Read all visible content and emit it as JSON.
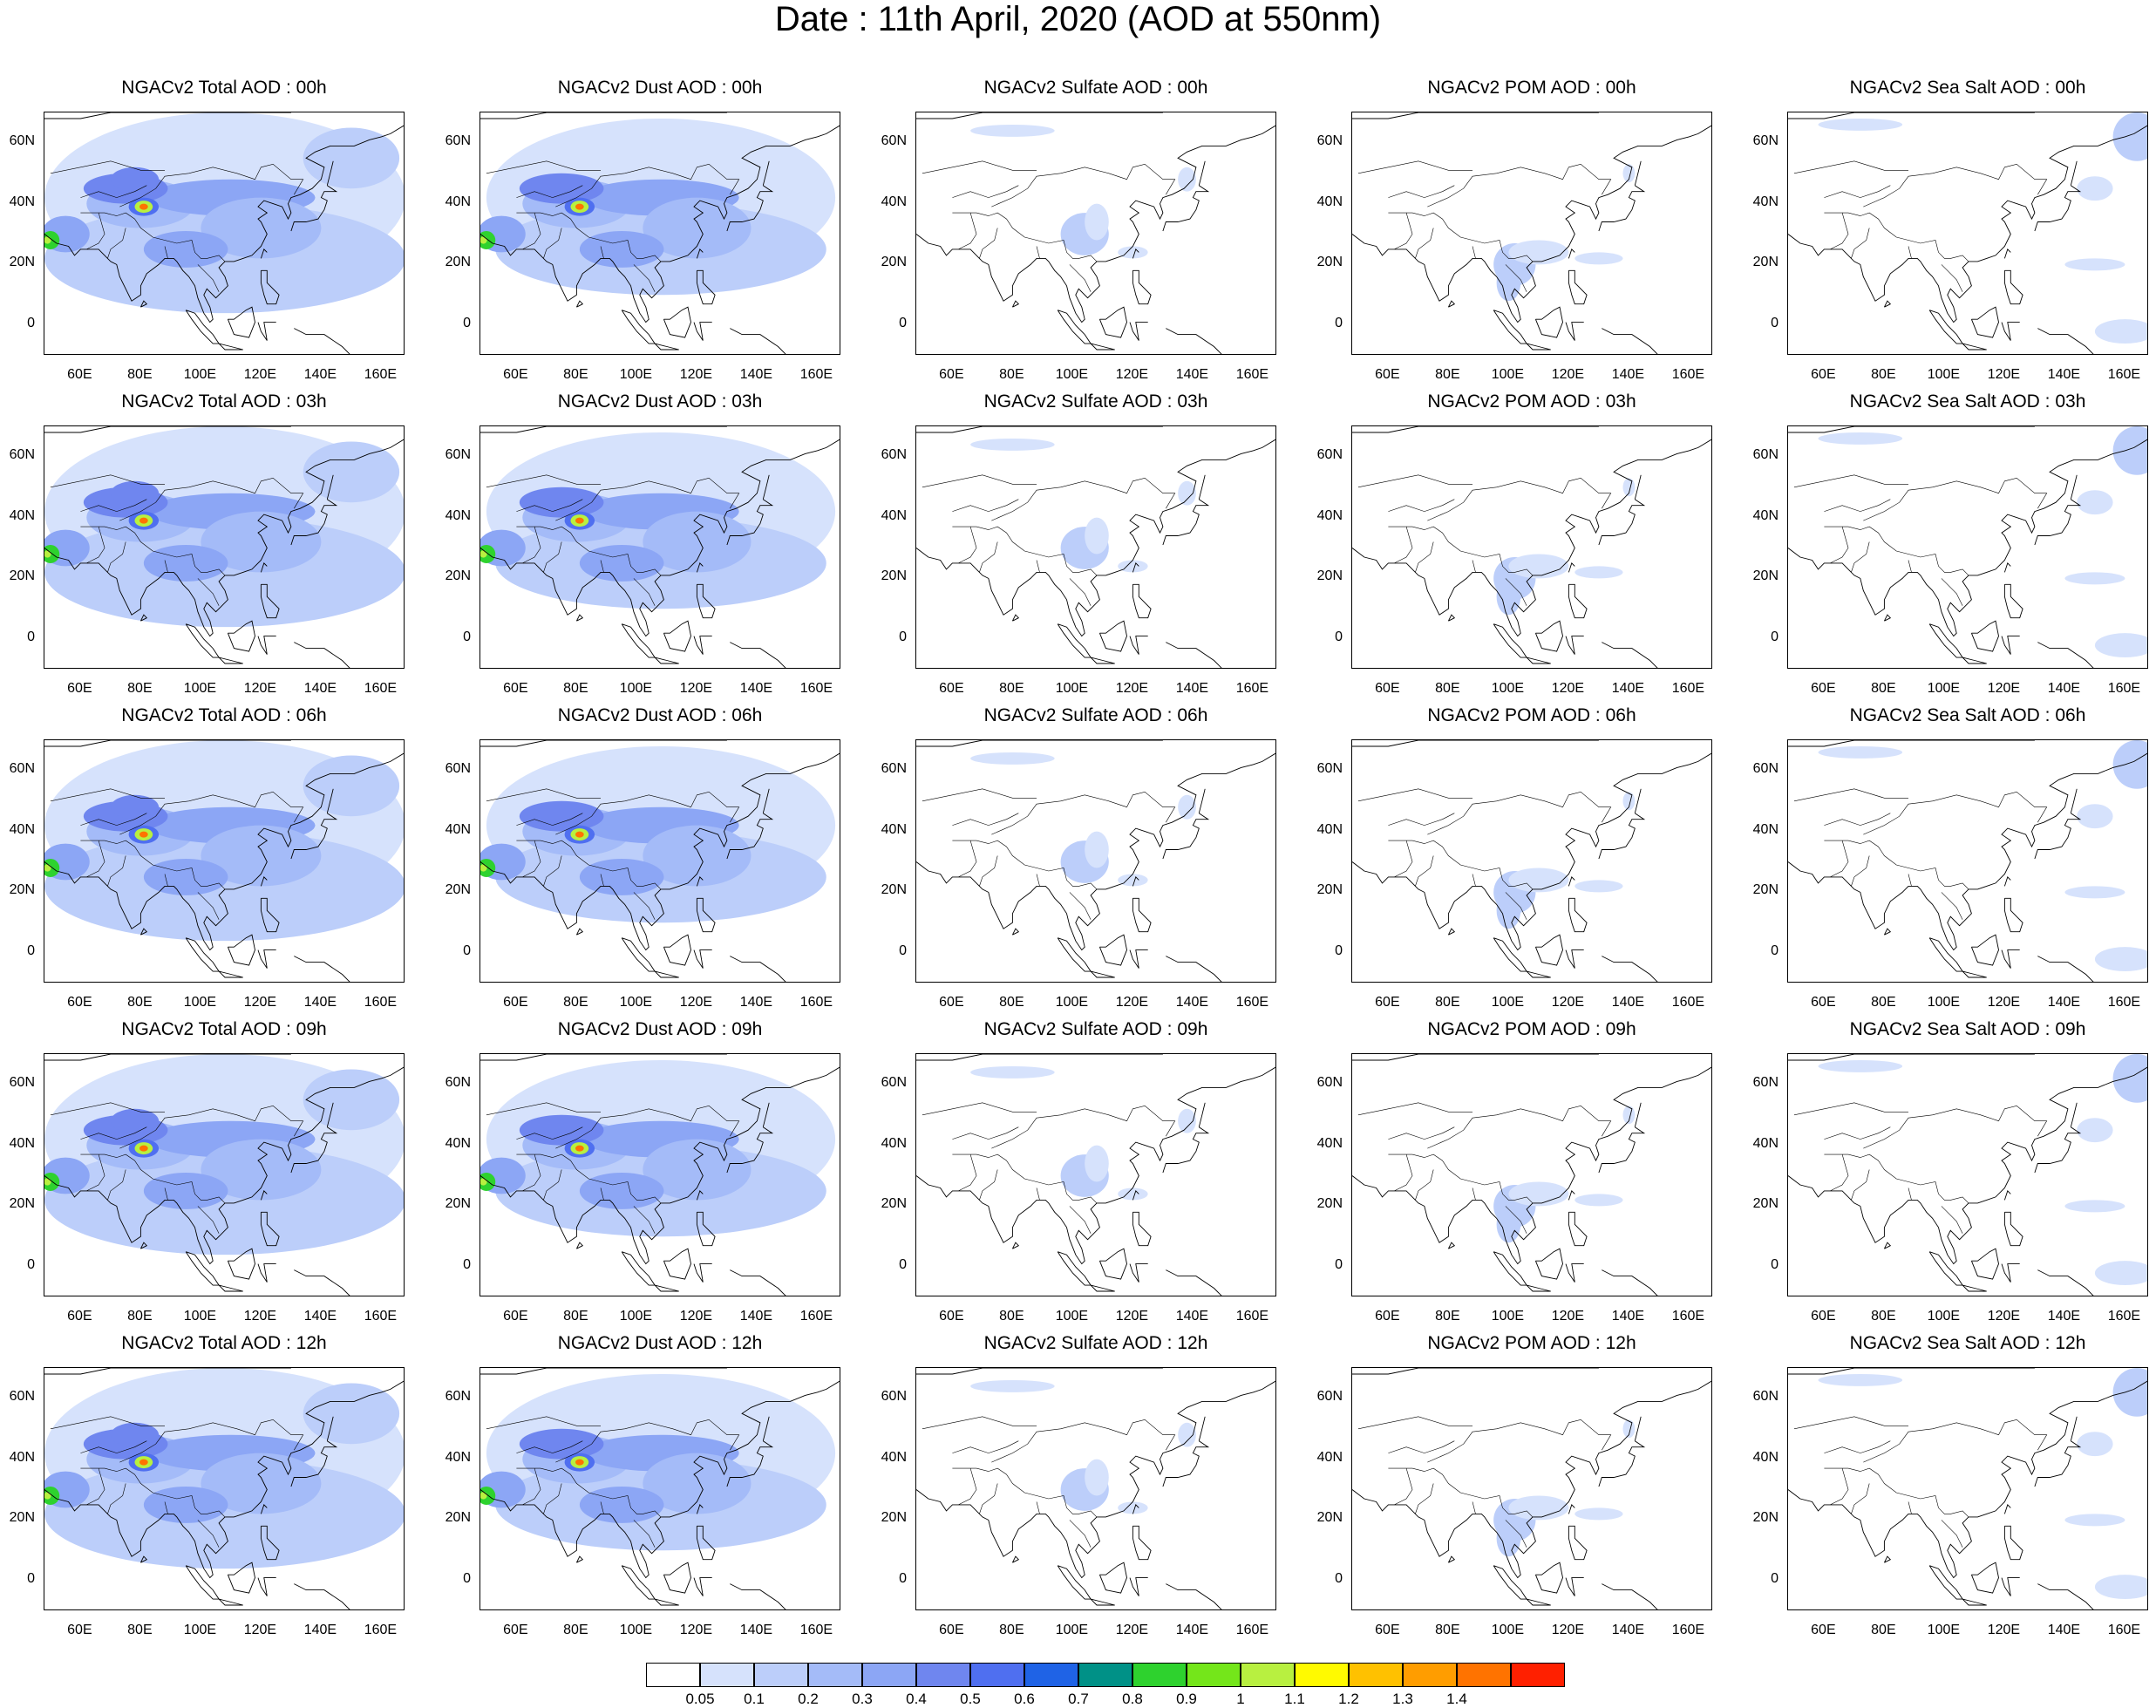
{
  "title": "Date : 11th April, 2020 (AOD at 550nm)",
  "x_tick_labels": [
    "60E",
    "80E",
    "100E",
    "120E",
    "140E",
    "160E"
  ],
  "y_tick_labels": [
    "60N",
    "40N",
    "20N",
    "0"
  ],
  "map_extent": {
    "lon": [
      48,
      168
    ],
    "lat": [
      -10,
      70
    ]
  },
  "panels": [
    {
      "title": "NGACv2 Total AOD : 00h",
      "species": "total",
      "hour": "00h"
    },
    {
      "title": "NGACv2 Dust AOD : 00h",
      "species": "dust",
      "hour": "00h"
    },
    {
      "title": "NGACv2 Sulfate AOD : 00h",
      "species": "sulfate",
      "hour": "00h"
    },
    {
      "title": "NGACv2 POM AOD : 00h",
      "species": "pom",
      "hour": "00h"
    },
    {
      "title": "NGACv2 Sea Salt AOD : 00h",
      "species": "seasalt",
      "hour": "00h"
    },
    {
      "title": "NGACv2 Total AOD : 03h",
      "species": "total",
      "hour": "03h"
    },
    {
      "title": "NGACv2 Dust AOD : 03h",
      "species": "dust",
      "hour": "03h"
    },
    {
      "title": "NGACv2 Sulfate AOD : 03h",
      "species": "sulfate",
      "hour": "03h"
    },
    {
      "title": "NGACv2 POM AOD : 03h",
      "species": "pom",
      "hour": "03h"
    },
    {
      "title": "NGACv2 Sea Salt AOD : 03h",
      "species": "seasalt",
      "hour": "03h"
    },
    {
      "title": "NGACv2 Total AOD : 06h",
      "species": "total",
      "hour": "06h"
    },
    {
      "title": "NGACv2 Dust AOD : 06h",
      "species": "dust",
      "hour": "06h"
    },
    {
      "title": "NGACv2 Sulfate AOD : 06h",
      "species": "sulfate",
      "hour": "06h"
    },
    {
      "title": "NGACv2 POM AOD : 06h",
      "species": "pom",
      "hour": "06h"
    },
    {
      "title": "NGACv2 Sea Salt AOD : 06h",
      "species": "seasalt",
      "hour": "06h"
    },
    {
      "title": "NGACv2 Total AOD : 09h",
      "species": "total",
      "hour": "09h"
    },
    {
      "title": "NGACv2 Dust AOD : 09h",
      "species": "dust",
      "hour": "09h"
    },
    {
      "title": "NGACv2 Sulfate AOD : 09h",
      "species": "sulfate",
      "hour": "09h"
    },
    {
      "title": "NGACv2 POM AOD : 09h",
      "species": "pom",
      "hour": "09h"
    },
    {
      "title": "NGACv2 Sea Salt  AOD : 09h",
      "species": "seasalt",
      "hour": "09h"
    },
    {
      "title": "NGACv2 Total AOD  : 12h",
      "species": "total",
      "hour": "12h"
    },
    {
      "title": "NGACv2 Dust AOD : 12h",
      "species": "dust",
      "hour": "12h"
    },
    {
      "title": "NGACv2 Sulfate AOD : 12h",
      "species": "sulfate",
      "hour": "12h"
    },
    {
      "title": "NGACv2 POM  AOD : 12h",
      "species": "pom",
      "hour": "12h"
    },
    {
      "title": "NGACv2 Sea Salt  AOD : 12h",
      "species": "seasalt",
      "hour": "12h"
    }
  ],
  "colorbar": {
    "labels": [
      "0.05",
      "0.1",
      "0.2",
      "0.3",
      "0.4",
      "0.5",
      "0.6",
      "0.7",
      "0.8",
      "0.9",
      "1",
      "1.1",
      "1.2",
      "1.3",
      "1.4"
    ],
    "colors": [
      "#ffffff",
      "#d6e2fc",
      "#bccefa",
      "#a4bbf8",
      "#8ca6f5",
      "#6f86ef",
      "#4f6ff0",
      "#1f63e6",
      "#009187",
      "#2ed22e",
      "#74e61a",
      "#b8f040",
      "#fffa00",
      "#ffc100",
      "#ff9d00",
      "#ff7300",
      "#ff2000"
    ]
  }
}
